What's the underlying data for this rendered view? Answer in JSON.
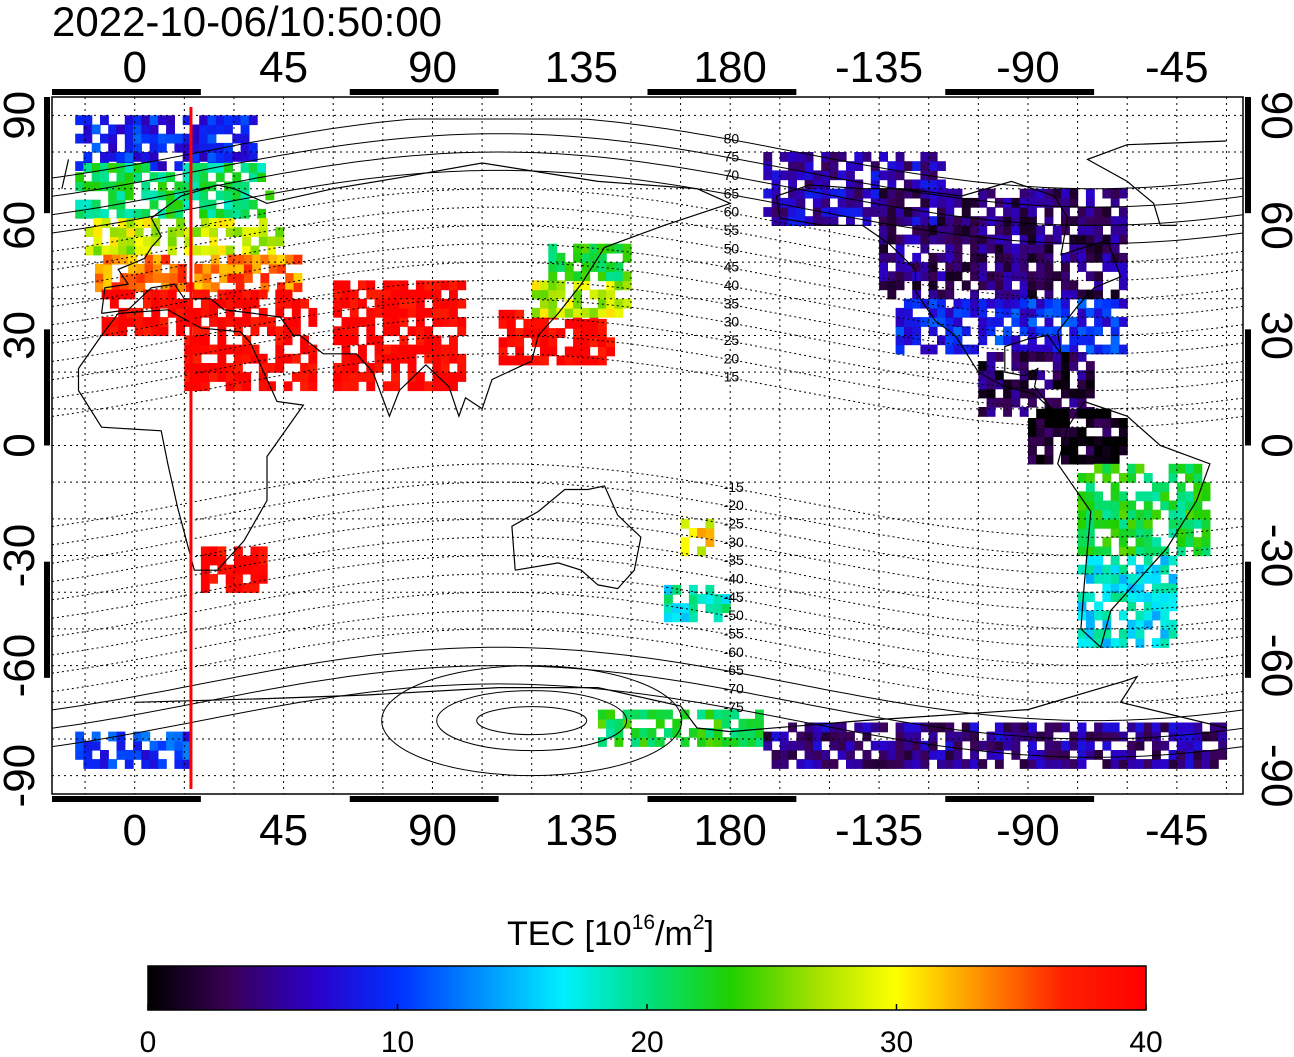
{
  "title": "2022-10-06/10:50:00",
  "map": {
    "lon_min": -25,
    "lon_max": 335,
    "lat_min": -95,
    "lat_max": 95,
    "lon_ticks": [
      {
        "value": 0,
        "label": "0"
      },
      {
        "value": 45,
        "label": "45"
      },
      {
        "value": 90,
        "label": "90"
      },
      {
        "value": 135,
        "label": "135"
      },
      {
        "value": 180,
        "label": "180"
      },
      {
        "value": 225,
        "label": "-135"
      },
      {
        "value": 270,
        "label": "-90"
      },
      {
        "value": 315,
        "label": "-45"
      }
    ],
    "lat_ticks": [
      {
        "value": 90,
        "label": "90"
      },
      {
        "value": 60,
        "label": "60"
      },
      {
        "value": 30,
        "label": "30"
      },
      {
        "value": 0,
        "label": "0"
      },
      {
        "value": -30,
        "label": "-30"
      },
      {
        "value": -60,
        "label": "-60"
      },
      {
        "value": -90,
        "label": "-90"
      }
    ],
    "grid_lon_step": 15,
    "grid_lat_step": 10,
    "terminator_lon": 17,
    "magnetic_lat_labels": [
      "80",
      "75",
      "70",
      "65",
      "60",
      "55",
      "50",
      "45",
      "40",
      "35",
      "30",
      "25",
      "20",
      "15",
      "-15",
      "-20",
      "-25",
      "-30",
      "-35",
      "-40",
      "-45",
      "-50",
      "-55",
      "-60",
      "-65",
      "-70",
      "-75"
    ],
    "magnetic_label_lon": 178,
    "magnetic_pole_south": {
      "lon": 120,
      "lat": -75
    }
  },
  "colorbar": {
    "title_main": "TEC  [10",
    "title_sup1": "16",
    "title_mid": "/m",
    "title_sup2": "2",
    "title_end": "]",
    "min": 0,
    "max": 40,
    "tick_labels": [
      {
        "value": 0,
        "label": "0"
      },
      {
        "value": 10,
        "label": "10"
      },
      {
        "value": 20,
        "label": "20"
      },
      {
        "value": 30,
        "label": "30"
      },
      {
        "value": 40,
        "label": "40"
      }
    ],
    "colors": [
      "#000000",
      "#3a0058",
      "#2b00c8",
      "#0030ff",
      "#0090ff",
      "#00f0ff",
      "#00e080",
      "#20d000",
      "#a0e000",
      "#ffff00",
      "#ff9000",
      "#ff2000",
      "#ff0000"
    ]
  },
  "tec_regions": [
    {
      "lon": [
        -18,
        35
      ],
      "lat": [
        75,
        88
      ],
      "tec": 9
    },
    {
      "lon": [
        -18,
        40
      ],
      "lat": [
        62,
        75
      ],
      "tec": 21
    },
    {
      "lon": [
        -15,
        45
      ],
      "lat": [
        52,
        62
      ],
      "tec": 28
    },
    {
      "lon": [
        -12,
        50
      ],
      "lat": [
        42,
        52
      ],
      "tec": 34
    },
    {
      "lon": [
        -10,
        55
      ],
      "lat": [
        30,
        42
      ],
      "tec": 40
    },
    {
      "lon": [
        15,
        55
      ],
      "lat": [
        15,
        30
      ],
      "tec": 40
    },
    {
      "lon": [
        20,
        40
      ],
      "lat": [
        -40,
        -28
      ],
      "tec": 40
    },
    {
      "lon": [
        60,
        100
      ],
      "lat": [
        15,
        45
      ],
      "tec": 40
    },
    {
      "lon": [
        110,
        145
      ],
      "lat": [
        22,
        35
      ],
      "tec": 40
    },
    {
      "lon": [
        120,
        150
      ],
      "lat": [
        35,
        45
      ],
      "tec": 28
    },
    {
      "lon": [
        125,
        148
      ],
      "lat": [
        45,
        55
      ],
      "tec": 22
    },
    {
      "lon": [
        165,
        175
      ],
      "lat": [
        -30,
        -20
      ],
      "tec": 30
    },
    {
      "lon": [
        160,
        178
      ],
      "lat": [
        -48,
        -38
      ],
      "tec": 18
    },
    {
      "lon": [
        190,
        245
      ],
      "lat": [
        60,
        80
      ],
      "tec": 6
    },
    {
      "lon": [
        225,
        300
      ],
      "lat": [
        40,
        70
      ],
      "tec": 4
    },
    {
      "lon": [
        230,
        300
      ],
      "lat": [
        25,
        40
      ],
      "tec": 9
    },
    {
      "lon": [
        255,
        290
      ],
      "lat": [
        8,
        25
      ],
      "tec": 3
    },
    {
      "lon": [
        270,
        300
      ],
      "lat": [
        -5,
        8
      ],
      "tec": 1
    },
    {
      "lon": [
        285,
        325
      ],
      "lat": [
        -30,
        -5
      ],
      "tec": 22
    },
    {
      "lon": [
        285,
        315
      ],
      "lat": [
        -55,
        -30
      ],
      "tec": 17
    },
    {
      "lon": [
        140,
        190
      ],
      "lat": [
        -82,
        -72
      ],
      "tec": 22
    },
    {
      "lon": [
        190,
        330
      ],
      "lat": [
        -88,
        -76
      ],
      "tec": 5
    },
    {
      "lon": [
        -18,
        15
      ],
      "lat": [
        -88,
        -78
      ],
      "tec": 10
    }
  ]
}
